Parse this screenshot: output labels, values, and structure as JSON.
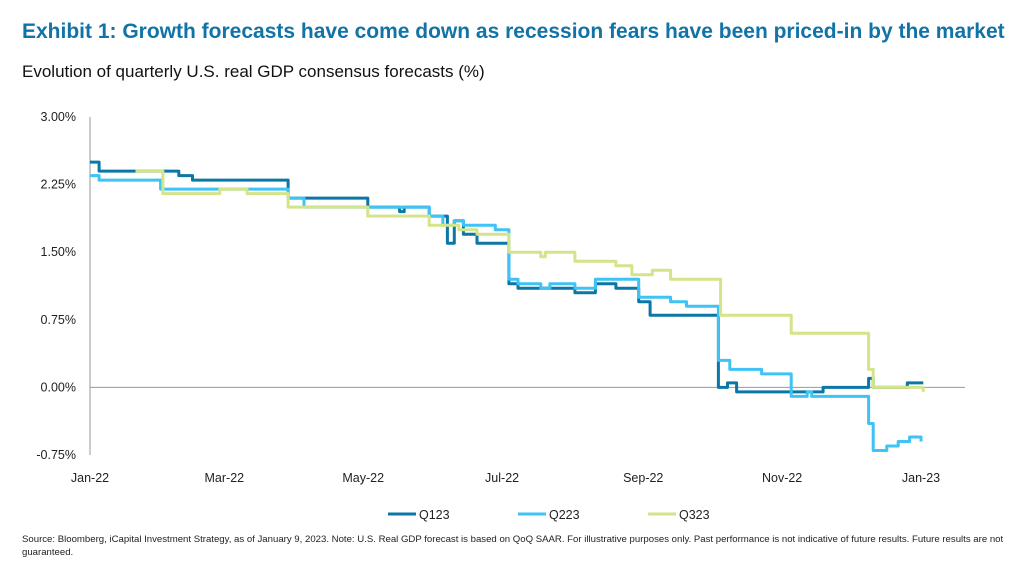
{
  "title": "Exhibit 1: Growth forecasts have come down as recession fears have been priced-in by the market",
  "subtitle": "Evolution of quarterly U.S. real GDP consensus forecasts (%)",
  "source": "Source: Bloomberg, iCapital Investment Strategy, as of January 9, 2023. Note: U.S. Real GDP forecast is based on QoQ SAAR. For illustrative purposes only. Past performance is not indicative of future results. Future results are not guaranteed.",
  "colors": {
    "title": "#1273a6",
    "Q123": "#0b77a6",
    "Q223": "#3fc2f4",
    "Q323": "#d3e489"
  },
  "chart_data": {
    "type": "line",
    "title": "",
    "xlabel": "",
    "ylabel": "",
    "xlim": [
      "2022-01-01",
      "2023-01-01"
    ],
    "ylim": [
      -0.75,
      3.0
    ],
    "yticks": [
      3.0,
      2.25,
      1.5,
      0.75,
      0.0,
      -0.75
    ],
    "ytick_labels": [
      "3.00%",
      "2.25%",
      "1.50%",
      "0.75%",
      "0.00%",
      "-0.75%"
    ],
    "xticks": [
      "2022-01-01",
      "2022-03-01",
      "2022-05-01",
      "2022-07-01",
      "2022-09-01",
      "2022-11-01",
      "2023-01-01"
    ],
    "xtick_labels": [
      "Jan-22",
      "Mar-22",
      "May-22",
      "Jul-22",
      "Sep-22",
      "Nov-22",
      "Jan-23"
    ],
    "grid": false,
    "legend": "bottom",
    "series": [
      {
        "name": "Q123",
        "points": [
          [
            "2022-01-01",
            2.5
          ],
          [
            "2022-01-05",
            2.4
          ],
          [
            "2022-02-09",
            2.35
          ],
          [
            "2022-02-15",
            2.3
          ],
          [
            "2022-03-29",
            2.1
          ],
          [
            "2022-05-03",
            2.0
          ],
          [
            "2022-05-17",
            1.95
          ],
          [
            "2022-05-19",
            2.0
          ],
          [
            "2022-05-30",
            1.9
          ],
          [
            "2022-06-07",
            1.6
          ],
          [
            "2022-06-10",
            1.85
          ],
          [
            "2022-06-14",
            1.7
          ],
          [
            "2022-06-20",
            1.6
          ],
          [
            "2022-07-04",
            1.15
          ],
          [
            "2022-07-08",
            1.1
          ],
          [
            "2022-08-02",
            1.05
          ],
          [
            "2022-08-11",
            1.15
          ],
          [
            "2022-08-20",
            1.1
          ],
          [
            "2022-08-30",
            0.95
          ],
          [
            "2022-09-04",
            0.8
          ],
          [
            "2022-10-04",
            0.0
          ],
          [
            "2022-10-08",
            0.05
          ],
          [
            "2022-10-12",
            -0.05
          ],
          [
            "2022-11-19",
            0.0
          ],
          [
            "2022-12-09",
            0.1
          ],
          [
            "2022-12-11",
            0.0
          ],
          [
            "2022-12-26",
            0.05
          ],
          [
            "2023-01-02",
            0.05
          ]
        ]
      },
      {
        "name": "Q223",
        "points": [
          [
            "2022-01-01",
            2.35
          ],
          [
            "2022-01-05",
            2.3
          ],
          [
            "2022-02-01",
            2.2
          ],
          [
            "2022-03-29",
            2.1
          ],
          [
            "2022-04-05",
            2.0
          ],
          [
            "2022-05-30",
            1.9
          ],
          [
            "2022-06-05",
            1.8
          ],
          [
            "2022-06-10",
            1.85
          ],
          [
            "2022-06-14",
            1.8
          ],
          [
            "2022-06-28",
            1.75
          ],
          [
            "2022-07-04",
            1.2
          ],
          [
            "2022-07-08",
            1.15
          ],
          [
            "2022-07-18",
            1.1
          ],
          [
            "2022-07-22",
            1.15
          ],
          [
            "2022-08-02",
            1.1
          ],
          [
            "2022-08-11",
            1.2
          ],
          [
            "2022-08-30",
            1.0
          ],
          [
            "2022-09-13",
            0.95
          ],
          [
            "2022-09-20",
            0.9
          ],
          [
            "2022-10-04",
            0.3
          ],
          [
            "2022-10-09",
            0.2
          ],
          [
            "2022-10-23",
            0.15
          ],
          [
            "2022-11-05",
            -0.1
          ],
          [
            "2022-11-12",
            -0.05
          ],
          [
            "2022-11-14",
            -0.1
          ],
          [
            "2022-12-09",
            -0.4
          ],
          [
            "2022-12-11",
            -0.7
          ],
          [
            "2022-12-17",
            -0.65
          ],
          [
            "2022-12-22",
            -0.6
          ],
          [
            "2022-12-27",
            -0.55
          ],
          [
            "2023-01-01",
            -0.6
          ]
        ]
      },
      {
        "name": "Q323",
        "points": [
          [
            "2022-01-21",
            2.4
          ],
          [
            "2022-02-02",
            2.15
          ],
          [
            "2022-02-27",
            2.2
          ],
          [
            "2022-03-11",
            2.15
          ],
          [
            "2022-03-29",
            2.0
          ],
          [
            "2022-05-03",
            1.9
          ],
          [
            "2022-05-30",
            1.8
          ],
          [
            "2022-06-12",
            1.75
          ],
          [
            "2022-06-20",
            1.7
          ],
          [
            "2022-07-04",
            1.5
          ],
          [
            "2022-07-18",
            1.45
          ],
          [
            "2022-07-20",
            1.5
          ],
          [
            "2022-08-02",
            1.4
          ],
          [
            "2022-08-20",
            1.35
          ],
          [
            "2022-08-27",
            1.25
          ],
          [
            "2022-09-05",
            1.3
          ],
          [
            "2022-09-13",
            1.2
          ],
          [
            "2022-10-05",
            0.8
          ],
          [
            "2022-11-05",
            0.6
          ],
          [
            "2022-12-09",
            0.2
          ],
          [
            "2022-12-11",
            0.0
          ],
          [
            "2023-01-01",
            0.0
          ],
          [
            "2023-01-02",
            -0.05
          ]
        ]
      }
    ]
  }
}
